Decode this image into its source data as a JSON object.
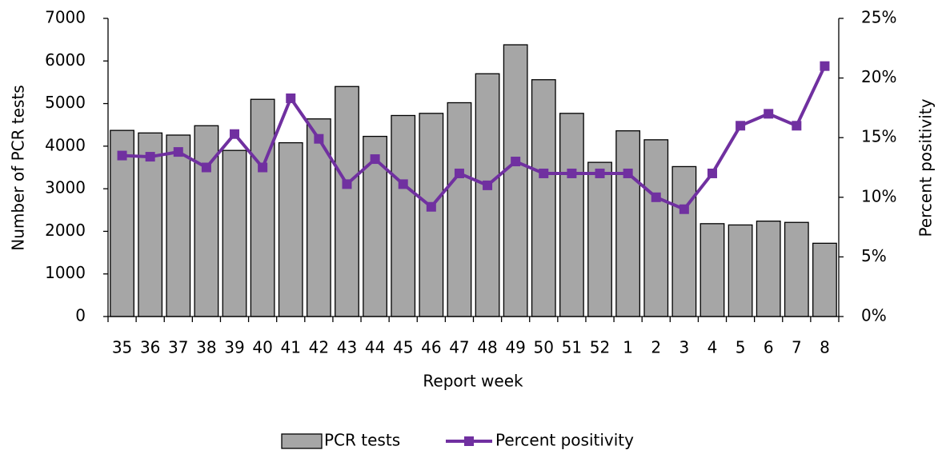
{
  "chart_data": {
    "type": "bar_line",
    "x_label": "Report week",
    "y_label": "Number of PCR tests",
    "y2_label": "Percent positivity",
    "categories": [
      "35",
      "36",
      "37",
      "38",
      "39",
      "40",
      "41",
      "42",
      "43",
      "44",
      "45",
      "46",
      "47",
      "48",
      "49",
      "50",
      "51",
      "52",
      "1",
      "2",
      "3",
      "4",
      "5",
      "6",
      "7",
      "8"
    ],
    "series": [
      {
        "name": "PCR tests",
        "type": "bar",
        "color": "#a6a6a6",
        "values": [
          4370,
          4310,
          4260,
          4480,
          3900,
          5100,
          4080,
          4640,
          5400,
          4230,
          4720,
          4770,
          5020,
          5700,
          6380,
          5560,
          4770,
          3620,
          4360,
          4150,
          3520,
          2180,
          2150,
          2240,
          2210,
          1720
        ]
      },
      {
        "name": "Percent positivity",
        "type": "line",
        "axis": "y2",
        "color": "#7030a0",
        "values": [
          13.5,
          13.4,
          13.8,
          12.5,
          15.3,
          12.5,
          18.3,
          14.9,
          11.1,
          13.2,
          11.1,
          9.2,
          12,
          11,
          13,
          12,
          12,
          12,
          12,
          10,
          9,
          12,
          16,
          17,
          16,
          21
        ]
      }
    ],
    "ylim": [
      0,
      7000
    ],
    "yticks": [
      0,
      1000,
      2000,
      3000,
      4000,
      5000,
      6000,
      7000
    ],
    "y2lim": [
      0,
      25
    ],
    "y2ticks": [
      {
        "value": 0,
        "label": "0%"
      },
      {
        "value": 5,
        "label": "5%"
      },
      {
        "value": 10,
        "label": "10%"
      },
      {
        "value": 15,
        "label": "15%"
      },
      {
        "value": 20,
        "label": "20%"
      },
      {
        "value": 25,
        "label": "25%"
      }
    ],
    "legend": "bottom"
  }
}
